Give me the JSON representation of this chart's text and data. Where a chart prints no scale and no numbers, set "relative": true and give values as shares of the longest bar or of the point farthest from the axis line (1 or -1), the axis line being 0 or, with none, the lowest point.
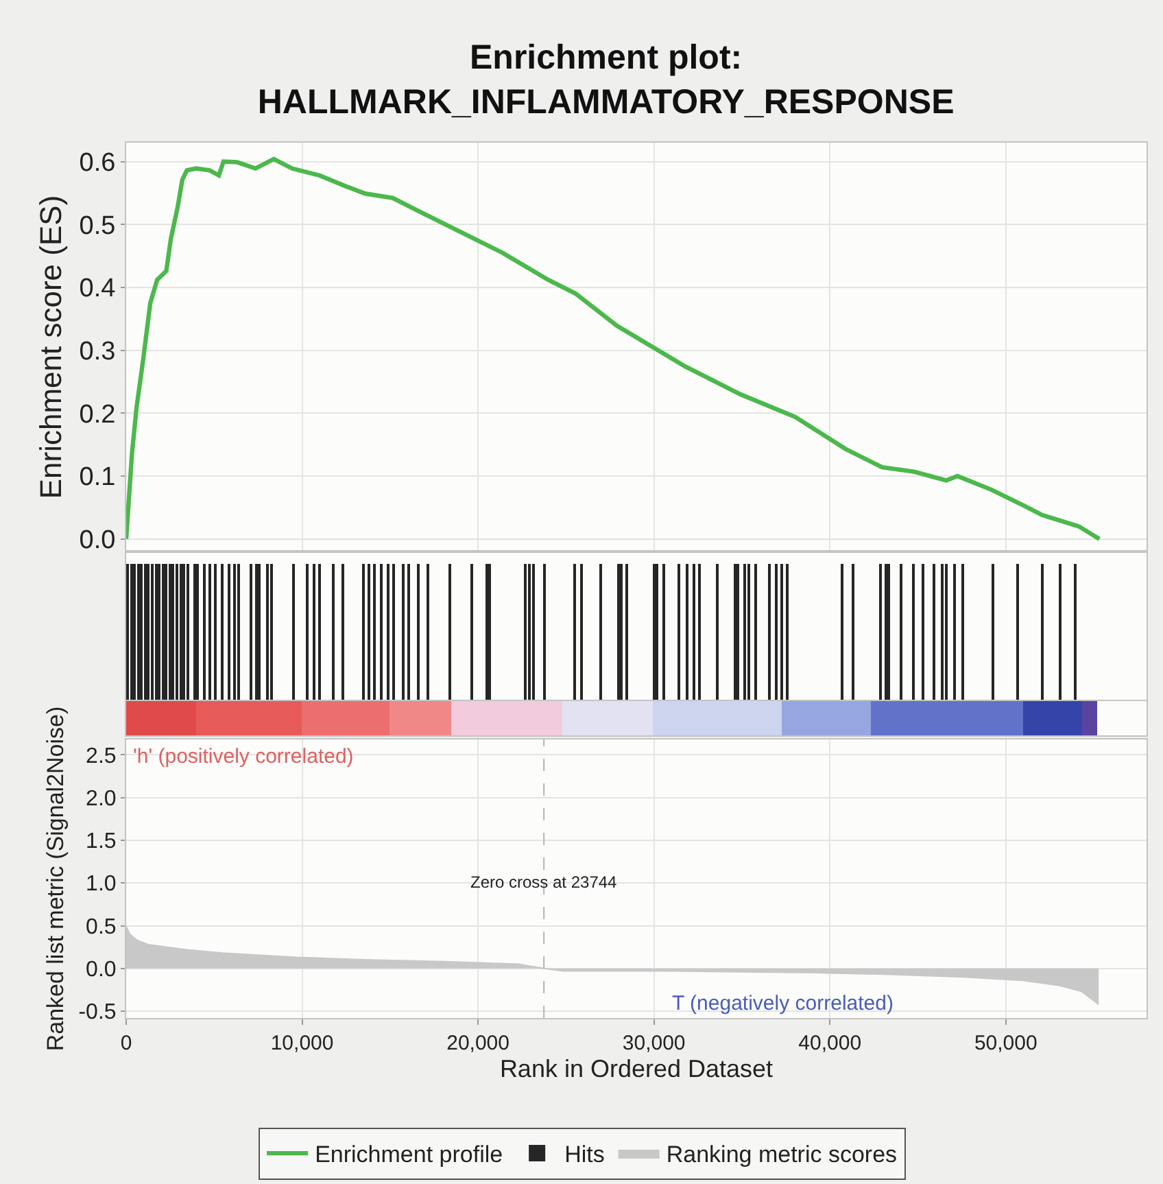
{
  "chart_data": [
    {
      "type": "line",
      "title": "Enrichment plot:\nHALLMARK_INFLAMMATORY_RESPONSE",
      "ylabel": "Enrichment score (ES)",
      "xlim": [
        0,
        58000
      ],
      "xticks": [
        {
          "value": 0,
          "label": null
        },
        {
          "value": 10000,
          "label": null
        },
        {
          "value": 20000,
          "label": null
        },
        {
          "value": 30000,
          "label": null
        },
        {
          "value": 40000,
          "label": null
        },
        {
          "value": 50000,
          "label": null
        }
      ],
      "ylim": [
        -0.02,
        0.63
      ],
      "yticks": [
        {
          "value": 0,
          "label": "0.0"
        },
        0.1,
        0.2,
        0.3,
        0.4,
        0.5,
        0.6
      ],
      "tick_labels": "y",
      "grid": true,
      "legend": "bottom",
      "series": [
        {
          "name": "Enrichment profile",
          "color": "#4cb84c",
          "x": [
            0,
            330,
            590,
            980,
            1370,
            1760,
            2280,
            2540,
            2930,
            3190,
            3450,
            3970,
            4750,
            5270,
            5530,
            6310,
            7350,
            8390,
            9430,
            10990,
            12550,
            13590,
            15150,
            16710,
            18790,
            21390,
            23990,
            25550,
            27890,
            31790,
            34910,
            38030,
            40890,
            42970,
            44790,
            46610,
            47250,
            49200,
            51030,
            52070,
            54150,
            55320
          ],
          "values": [
            0,
            0.136,
            0.209,
            0.288,
            0.375,
            0.412,
            0.426,
            0.477,
            0.528,
            0.571,
            0.586,
            0.589,
            0.586,
            0.578,
            0.6,
            0.599,
            0.589,
            0.604,
            0.589,
            0.578,
            0.56,
            0.549,
            0.542,
            0.52,
            0.491,
            0.455,
            0.412,
            0.39,
            0.339,
            0.274,
            0.23,
            0.194,
            0.143,
            0.114,
            0.107,
            0.093,
            0.1,
            0.078,
            0.053,
            0.038,
            0.02,
            0
          ]
        }
      ]
    },
    {
      "type": "bar",
      "relative": true,
      "tick_labels": false,
      "xlim": [
        0,
        58000
      ],
      "legend": "bottom",
      "series": [
        {
          "name": "Hits",
          "color": "#262626",
          "x": [
            100,
            300,
            500,
            700,
            900,
            1100,
            1300,
            1500,
            1700,
            1900,
            2100,
            2300,
            2500,
            2700,
            2900,
            3100,
            3300,
            3500,
            3900,
            4100,
            4500,
            4800,
            5100,
            5500,
            5900,
            6200,
            6400,
            7100,
            7400,
            7600,
            8050,
            8250,
            9500,
            10300,
            10700,
            11000,
            11800,
            12300,
            13500,
            13800,
            14100,
            14500,
            14900,
            15200,
            15800,
            16100,
            16600,
            17200,
            18400,
            19700,
            20500,
            20700,
            22700,
            22900,
            23200,
            23800,
            25500,
            25900,
            27000,
            28000,
            28200,
            28500,
            30000,
            30200,
            30600,
            31400,
            31900,
            32300,
            32600,
            33600,
            34600,
            34800,
            35200,
            35400,
            35800,
            36600,
            37000,
            37300,
            37600,
            40700,
            41300,
            42900,
            43200,
            43400,
            44100,
            44800,
            45300,
            45900,
            46400,
            46600,
            47100,
            47600,
            49300,
            50700,
            52100,
            53100,
            54000
          ],
          "values": [
            1,
            1,
            1,
            1,
            1,
            1,
            1,
            1,
            1,
            1,
            1,
            1,
            1,
            1,
            1,
            1,
            1,
            1,
            1,
            1,
            1,
            1,
            1,
            1,
            1,
            1,
            1,
            1,
            1,
            1,
            1,
            1,
            1,
            1,
            1,
            1,
            1,
            1,
            1,
            1,
            1,
            1,
            1,
            1,
            1,
            1,
            1,
            1,
            1,
            1,
            1,
            1,
            1,
            1,
            1,
            1,
            1,
            1,
            1,
            1,
            1,
            1,
            1,
            1,
            1,
            1,
            1,
            1,
            1,
            1,
            1,
            1,
            1,
            1,
            1,
            1,
            1,
            1,
            1,
            1,
            1,
            1,
            1,
            1,
            1,
            1,
            1,
            1,
            1,
            1,
            1,
            1,
            1,
            1,
            1,
            1,
            1
          ]
        }
      ]
    },
    {
      "type": "bar",
      "orientation": "horizontal",
      "stacked": true,
      "tick_labels": false,
      "categories": [
        null
      ],
      "xlim": [
        0,
        58000
      ],
      "series": [
        {
          "color": "#e04a4a",
          "values": [
            4000
          ]
        },
        {
          "color": "#e65a5a",
          "values": [
            6000
          ]
        },
        {
          "color": "#ec6e6e",
          "values": [
            5000
          ]
        },
        {
          "color": "#f08888",
          "values": [
            3500
          ]
        },
        {
          "color": "#f2ccdc",
          "values": [
            6300
          ]
        },
        {
          "color": "#e2e2f2",
          "values": [
            5100
          ]
        },
        {
          "color": "#cdd4ee",
          "values": [
            7400
          ]
        },
        {
          "color": "#96a6e0",
          "values": [
            5000
          ]
        },
        {
          "color": "#6272c8",
          "values": [
            8700
          ]
        },
        {
          "color": "#3444a8",
          "values": [
            3300
          ]
        },
        {
          "color": "#5a44a0",
          "values": [
            900
          ]
        }
      ]
    },
    {
      "type": "area",
      "xlabel": "Rank in Ordered Dataset",
      "ylabel": "Ranked list metric (Signal2Noise)",
      "xlim": [
        0,
        58000
      ],
      "xticks": [
        0,
        {
          "value": 10000,
          "label": "10,000"
        },
        {
          "value": 20000,
          "label": "20,000"
        },
        {
          "value": 30000,
          "label": "30,000"
        },
        {
          "value": 40000,
          "label": "40,000"
        },
        {
          "value": 50000,
          "label": "50,000"
        }
      ],
      "ylim": [
        -0.58,
        2.68
      ],
      "yticks": [
        -0.5,
        {
          "value": 0,
          "label": "0.0"
        },
        0.5,
        {
          "value": 1,
          "label": "1.0"
        },
        1.5,
        {
          "value": 2,
          "label": "2.0"
        },
        2.5
      ],
      "grid": true,
      "legend": "bottom",
      "ref_lines": [
        {
          "axis": "x",
          "value": 23744,
          "label": "Zero cross at 23744",
          "line_style": "dashed",
          "color": "#b4b4b4"
        }
      ],
      "annotations": [
        "'h' (positively correlated)",
        "T (negatively correlated)"
      ],
      "series": [
        {
          "name": "Ranking metric scores",
          "color": "#c8c8c8",
          "x": [
            0,
            210,
            630,
            1260,
            3370,
            5470,
            9680,
            13890,
            18100,
            22310,
            23744,
            24840,
            30730,
            34940,
            39150,
            43360,
            47570,
            50940,
            53050,
            54310,
            55280
          ],
          "values": [
            0.49,
            0.4,
            0.33,
            0.28,
            0.22,
            0.18,
            0.13,
            0.1,
            0.08,
            0.05,
            0,
            -0.03,
            -0.03,
            -0.04,
            -0.05,
            -0.07,
            -0.1,
            -0.14,
            -0.2,
            -0.27,
            -0.42
          ]
        }
      ]
    }
  ]
}
